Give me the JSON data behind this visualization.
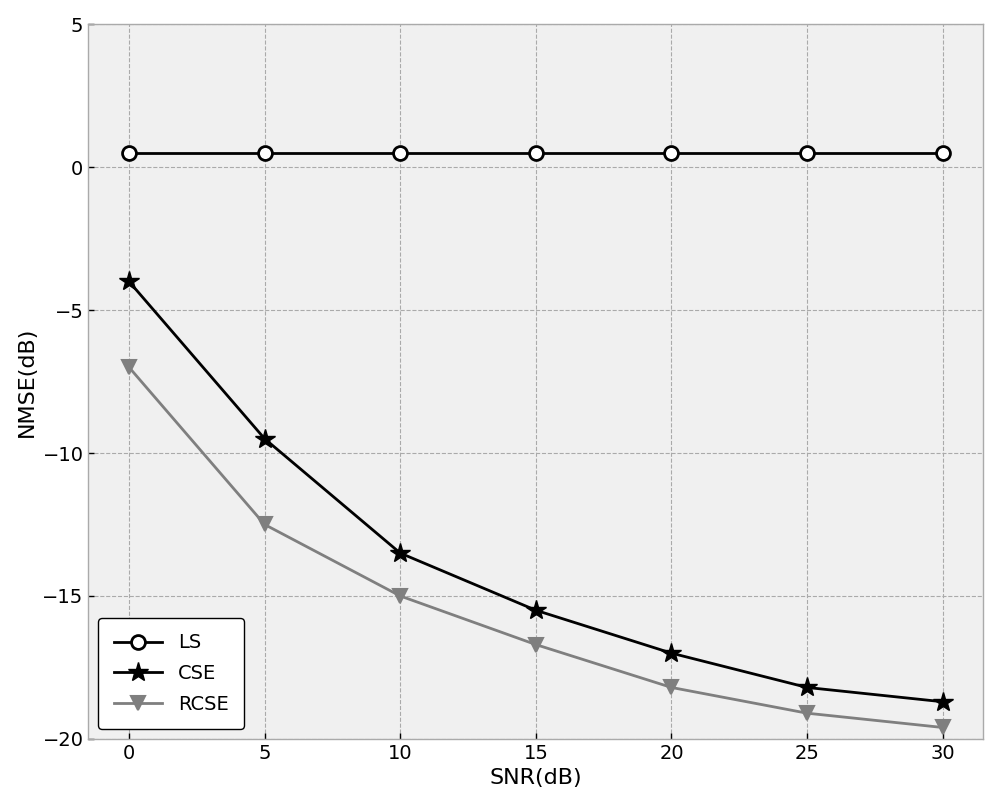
{
  "snr": [
    0,
    5,
    10,
    15,
    20,
    25,
    30
  ],
  "ls": [
    0.5,
    0.5,
    0.5,
    0.5,
    0.5,
    0.5,
    0.5
  ],
  "cse": [
    -4.0,
    -9.5,
    -13.5,
    -15.5,
    -17.0,
    -18.2,
    -18.7
  ],
  "rcse": [
    -7.0,
    -12.5,
    -15.0,
    -16.7,
    -18.2,
    -19.1,
    -19.6
  ],
  "ls_color": "#000000",
  "cse_color": "#000000",
  "rcse_color": "#7f7f7f",
  "xlabel": "SNR(dB)",
  "ylabel": "NMSE(dB)",
  "xlim": [
    -1.5,
    31.5
  ],
  "ylim": [
    -20,
    5
  ],
  "yticks": [
    -20,
    -15,
    -10,
    -5,
    0,
    5
  ],
  "xticks": [
    0,
    5,
    10,
    15,
    20,
    25,
    30
  ],
  "legend_labels": [
    "LS",
    "CSE",
    "RCSE"
  ],
  "linewidth": 2.0,
  "markersize": 10,
  "grid_color": "#aaaaaa",
  "plot_bg_color": "#f0f0f0",
  "fig_bg_color": "#ffffff",
  "legend_loc": "lower left",
  "spine_color": "#aaaaaa",
  "tick_color": "#000000",
  "label_fontsize": 16,
  "tick_fontsize": 14,
  "legend_fontsize": 14
}
